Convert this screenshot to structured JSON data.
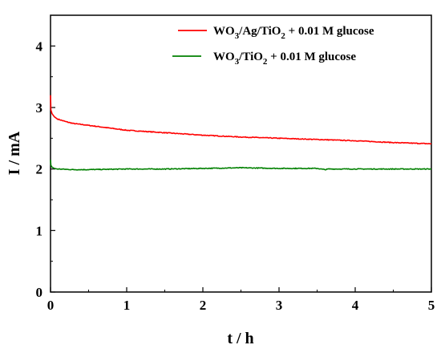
{
  "chart_data": {
    "type": "line",
    "xlabel": "t / h",
    "ylabel": "I / mA",
    "xlim": [
      0,
      5
    ],
    "ylim": [
      0,
      4.5
    ],
    "x_ticks": [
      "0",
      "1",
      "2",
      "3",
      "4",
      "5"
    ],
    "y_ticks": [
      "0",
      "1",
      "2",
      "3",
      "4"
    ],
    "legend_position": "top-right",
    "series": [
      {
        "name_parts": [
          "WO",
          "3",
          "/Ag/TiO",
          "2",
          " + 0.01 M glucose"
        ],
        "color": "#ff0000",
        "x": [
          0,
          0.005,
          0.02,
          0.05,
          0.1,
          0.2,
          0.3,
          0.5,
          0.75,
          1,
          1.5,
          2,
          2.5,
          3,
          3.5,
          4,
          4.5,
          5
        ],
        "y": [
          3.2,
          2.96,
          2.9,
          2.85,
          2.81,
          2.77,
          2.74,
          2.71,
          2.67,
          2.63,
          2.59,
          2.55,
          2.52,
          2.5,
          2.48,
          2.46,
          2.43,
          2.41
        ]
      },
      {
        "name_parts": [
          "WO",
          "3",
          "/TiO",
          "2",
          " + 0.01 M glucose"
        ],
        "color": "#008000",
        "x": [
          0,
          0.005,
          0.02,
          0.05,
          0.1,
          0.2,
          0.3,
          0.5,
          1,
          1.5,
          2,
          2.5,
          3,
          3.5,
          3.6,
          3.65,
          3.7,
          4,
          4.5,
          5
        ],
        "y": [
          2.15,
          2.06,
          2.03,
          2.01,
          2.0,
          1.995,
          1.99,
          1.99,
          2.0,
          2.0,
          2.01,
          2.02,
          2.01,
          2.01,
          1.99,
          2.0,
          2.0,
          2.0,
          2.0,
          2.0
        ]
      }
    ]
  }
}
